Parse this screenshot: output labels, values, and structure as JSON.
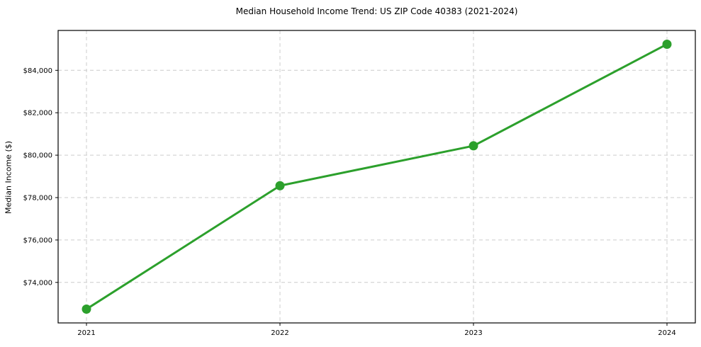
{
  "chart_data": {
    "type": "line",
    "title": "Median Household Income Trend: US ZIP Code 40383 (2021-2024)",
    "xlabel": "",
    "ylabel": "Median Income ($)",
    "x": [
      2021,
      2022,
      2023,
      2024
    ],
    "x_tick_labels": [
      "2021",
      "2022",
      "2023",
      "2024"
    ],
    "series": [
      {
        "name": "median-household-income",
        "values": [
          72740,
          78560,
          80440,
          85230
        ],
        "color": "#2ca02c",
        "marker": "circle",
        "line_width": 3,
        "marker_radius": 6.5
      }
    ],
    "ylim": [
      72090,
      85880
    ],
    "y_ticks": [
      74000,
      76000,
      78000,
      80000,
      82000,
      84000
    ],
    "y_tick_labels": [
      "$74,000",
      "$76,000",
      "$78,000",
      "$80,000",
      "$82,000",
      "$84,000"
    ],
    "grid": true,
    "grid_color": "#cccccc",
    "grid_dash": "5 4",
    "axis_color": "#000000",
    "legend": "none"
  }
}
